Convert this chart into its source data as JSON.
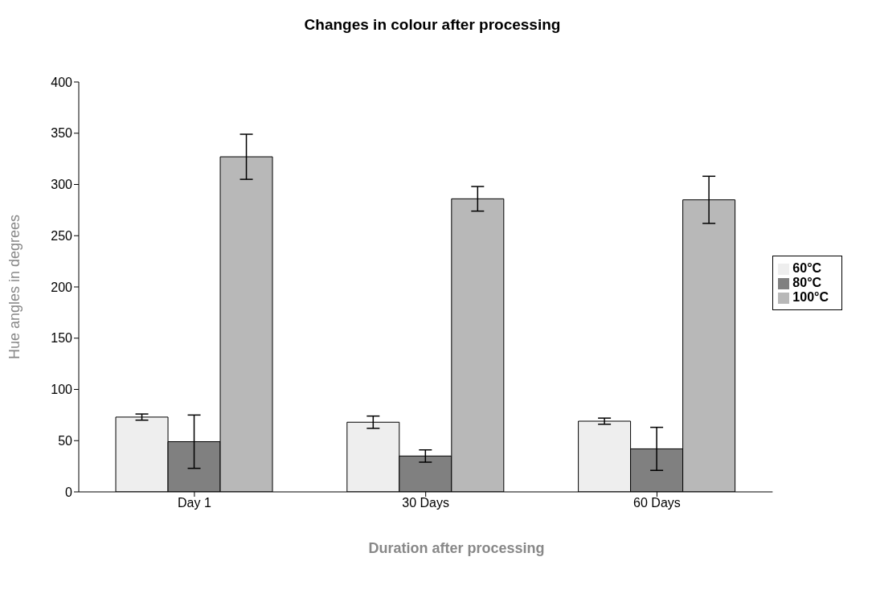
{
  "chart_data": {
    "type": "bar",
    "title": "Changes in colour after processing",
    "xlabel": "Duration after processing",
    "ylabel": "Hue angles in degrees",
    "categories": [
      "Day 1",
      "30 Days",
      "60 Days"
    ],
    "series": [
      {
        "name": "60°C",
        "color": "#eeeeee",
        "values": [
          73,
          68,
          69
        ],
        "errors": [
          3,
          6,
          3
        ]
      },
      {
        "name": "80°C",
        "color": "#808080",
        "values": [
          49,
          35,
          42
        ],
        "errors": [
          26,
          6,
          21
        ]
      },
      {
        "name": "100°C",
        "color": "#b8b8b8",
        "values": [
          327,
          286,
          285
        ],
        "errors": [
          22,
          12,
          23
        ]
      }
    ],
    "ylim": [
      0,
      400
    ],
    "yticks": [
      0,
      50,
      100,
      150,
      200,
      250,
      300,
      350,
      400
    ],
    "grid": false,
    "legend": "right"
  }
}
